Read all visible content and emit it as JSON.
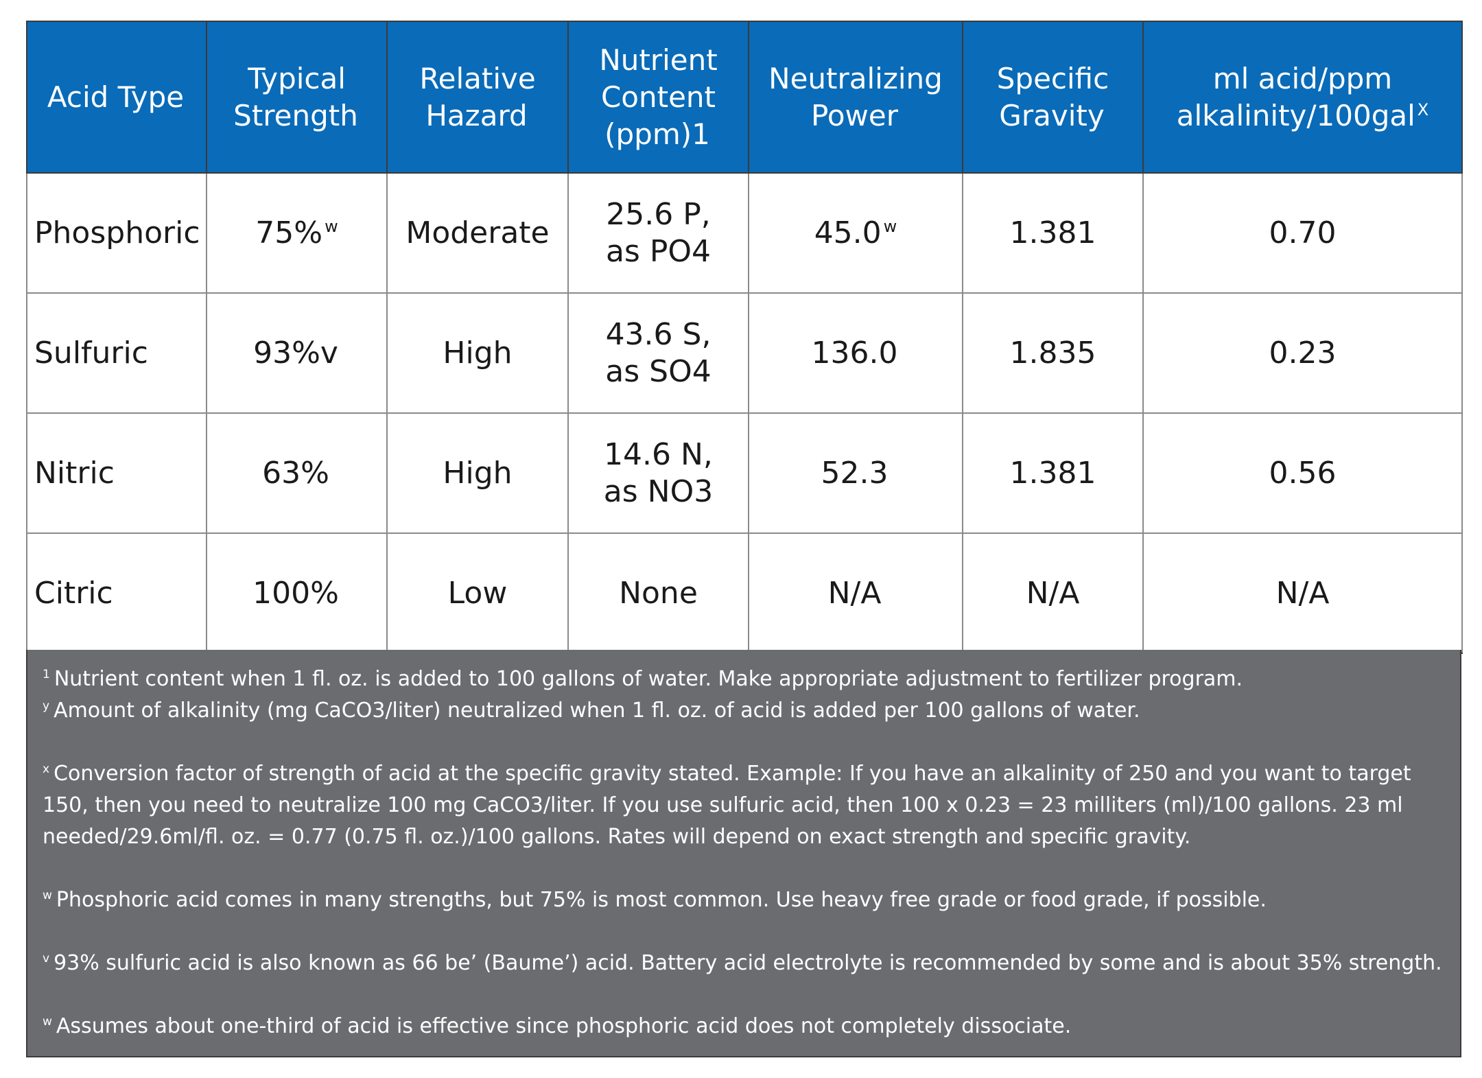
{
  "table": {
    "headers": [
      {
        "label": "Acid Type",
        "mark": ""
      },
      {
        "label": "Typical\nStrength",
        "mark": ""
      },
      {
        "label": "Relative\nHazard",
        "mark": ""
      },
      {
        "label": "Nutrient\nContent\n(ppm)1",
        "mark": ""
      },
      {
        "label": "Neutralizing\nPower",
        "mark": ""
      },
      {
        "label": "Specific\nGravity",
        "mark": ""
      },
      {
        "label": "ml acid/ppm\nalkalinity/100gal",
        "mark": "X"
      }
    ],
    "rows": [
      {
        "acid_type": "Phosphoric",
        "strength": "75%",
        "strength_mark": "w",
        "hazard": "Moderate",
        "nutrient": "25.6 P,\nas PO4",
        "neutralizing": "45.0",
        "neutralizing_mark": "w",
        "gravity": "1.381",
        "ml_acid": "0.70"
      },
      {
        "acid_type": "Sulfuric",
        "strength": "93%v",
        "strength_mark": "",
        "hazard": "High",
        "nutrient": "43.6 S,\nas SO4",
        "neutralizing": "136.0",
        "neutralizing_mark": "",
        "gravity": "1.835",
        "ml_acid": "0.23"
      },
      {
        "acid_type": "Nitric",
        "strength": "63%",
        "strength_mark": "",
        "hazard": "High",
        "nutrient": "14.6 N,\nas NO3",
        "neutralizing": "52.3",
        "neutralizing_mark": "",
        "gravity": "1.381",
        "ml_acid": "0.56"
      },
      {
        "acid_type": "Citric",
        "strength": "100%",
        "strength_mark": "",
        "hazard": "Low",
        "nutrient": "None",
        "neutralizing": "N/A",
        "neutralizing_mark": "",
        "gravity": "N/A",
        "ml_acid": "N/A"
      }
    ]
  },
  "footnotes": [
    {
      "mark": "1",
      "text": "Nutrient content when 1 fl. oz. is added to 100 gallons of water. Make appropriate adjustment to fertilizer program."
    },
    {
      "mark": "y",
      "text": "Amount of alkalinity (mg CaCO3/liter) neutralized when 1 fl. oz. of acid is added per 100 gallons of water."
    },
    {
      "mark": "x",
      "text": "Conversion factor of strength of acid at the specific gravity stated. Example: If you have an alkalinity of 250 and you want to target 150, then you need to neutralize 100 mg CaCO3/liter. If you use sulfuric acid, then 100 x 0.23 = 23 milliters (ml)/100 gallons. 23 ml needed/29.6ml/fl. oz. = 0.77 (0.75 fl. oz.)/100 gallons. Rates will depend on exact strength and specific gravity."
    },
    {
      "mark": "w",
      "text": "Phosphoric acid comes in many strengths, but 75% is most common. Use heavy free grade or food grade, if possible."
    },
    {
      "mark": "v",
      "text": "93% sulfuric acid is also known as 66 be’ (Baume’) acid. Battery acid electrolyte is recommended by some and is about 35% strength."
    },
    {
      "mark": "w",
      "text": "Assumes about one-third of acid is effective since phosphoric acid does not completely dissociate."
    }
  ]
}
